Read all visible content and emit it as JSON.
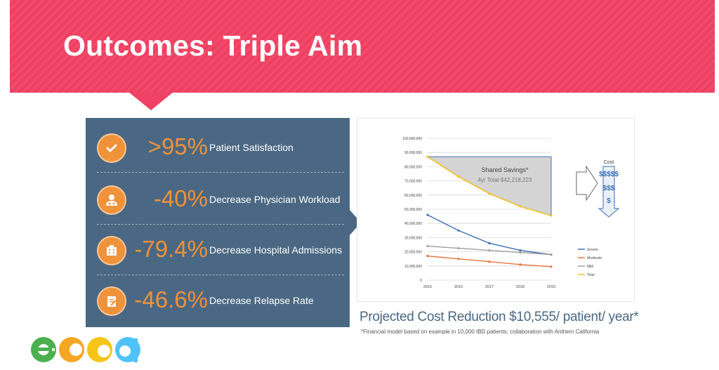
{
  "slide": {
    "title": "Outcomes: Triple Aim"
  },
  "outcomes": [
    {
      "value": ">95%",
      "label": "Patient Satisfaction",
      "icon": "checkmark-icon"
    },
    {
      "value": "-40%",
      "label": "Decrease Physician Workload",
      "icon": "doctor-icon"
    },
    {
      "value": "-79.4%",
      "label": "Decrease Hospital Admissions",
      "icon": "hospital-icon"
    },
    {
      "value": "-46.6%",
      "label": "Decrease Relapse Rate",
      "icon": "clipboard-icon"
    }
  ],
  "colors": {
    "banner": "#f24a6a",
    "panel": "#4a6883",
    "accent": "#f0923a",
    "severe": "#3d6eb4",
    "moderate": "#e8733a",
    "mild": "#a0a0a0",
    "total": "#f2c01e",
    "cost": "#3d6eb4"
  },
  "chart_data": {
    "type": "line",
    "x": [
      "2015",
      "2016",
      "2017",
      "2018",
      "2019"
    ],
    "ylim": [
      0,
      100000000
    ],
    "yticks": [
      "0",
      "10,000,000",
      "20,000,000",
      "30,000,000",
      "40,000,000",
      "50,000,000",
      "60,000,000",
      "70,000,000",
      "80,000,000",
      "90,000,000",
      "100,000,000"
    ],
    "grid": true,
    "legend": "right",
    "series": [
      {
        "name": "Severe",
        "values": [
          46000000,
          35000000,
          26000000,
          21000000,
          18000000
        ]
      },
      {
        "name": "Moderate",
        "values": [
          17000000,
          15000000,
          13000000,
          11000000,
          9500000
        ]
      },
      {
        "name": "Mild",
        "values": [
          24000000,
          22500000,
          21000000,
          19500000,
          18000000
        ]
      },
      {
        "name": "Total",
        "values": [
          87000000,
          73000000,
          61000000,
          52000000,
          45500000
        ]
      }
    ],
    "baseline": 87000000,
    "annotation": {
      "title": "Shared Savings*",
      "subtitle": "4yr Total $42,218,223"
    },
    "cost_label": "Cost",
    "cost_symbols": [
      "$$$$$",
      "$$$",
      "$"
    ]
  },
  "caption": "Projected Cost Reduction $10,555/ patient/ year*",
  "footnote": "*Financial model based on example in 10,000 IBD patients; collaboration with Anthem California"
}
